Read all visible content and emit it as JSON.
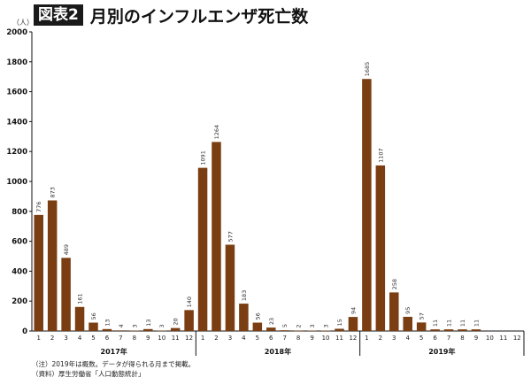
{
  "header": {
    "badge": "図表2",
    "title": "月別のインフルエンザ死亡数"
  },
  "unit_label": "（人）",
  "notes": [
    "（注）2019年は概数。データが得られる月まで掲載。",
    "（資料）厚生労働省「人口動態統計」"
  ],
  "colors": {
    "bar": "#7a3e12",
    "axis": "#111111",
    "grid": "#dddddd"
  },
  "chart_data": {
    "type": "bar",
    "title": "月別のインフルエンザ死亡数",
    "ylim": [
      0,
      2000
    ],
    "yticks": [
      0,
      200,
      400,
      600,
      800,
      1000,
      1200,
      1400,
      1600,
      1800,
      2000
    ],
    "groups": [
      {
        "year": "2017年",
        "months": [
          "1",
          "2",
          "3",
          "4",
          "5",
          "6",
          "7",
          "8",
          "9",
          "10",
          "11",
          "12"
        ],
        "values": [
          776,
          873,
          489,
          161,
          56,
          13,
          4,
          3,
          13,
          3,
          20,
          140
        ]
      },
      {
        "year": "2018年",
        "months": [
          "1",
          "2",
          "3",
          "4",
          "5",
          "6",
          "7",
          "8",
          "9",
          "10",
          "11",
          "12"
        ],
        "values": [
          1091,
          1264,
          577,
          183,
          56,
          23,
          5,
          2,
          3,
          3,
          15,
          94
        ]
      },
      {
        "year": "2019年",
        "months": [
          "1",
          "2",
          "3",
          "4",
          "5",
          "6",
          "7",
          "8",
          "9",
          "10",
          "11",
          "12"
        ],
        "values": [
          1685,
          1107,
          258,
          95,
          57,
          11,
          11,
          11,
          11,
          null,
          null,
          null
        ]
      }
    ]
  }
}
